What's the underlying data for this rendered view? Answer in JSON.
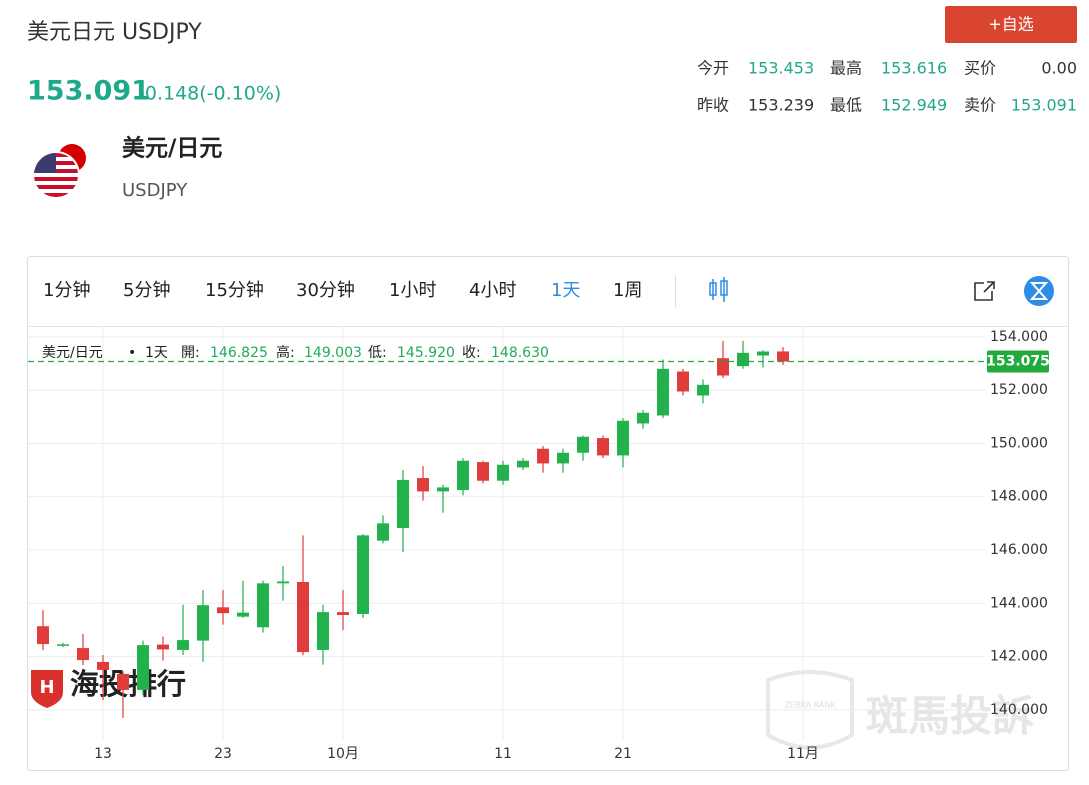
{
  "header": {
    "title": "美元日元 USDJPY",
    "price": "153.091",
    "change": "-0.148(-0.10%)",
    "button": "+自选",
    "stats": [
      [
        {
          "label": "今开",
          "value": "153.453"
        },
        {
          "label": "最高",
          "value": "153.616"
        },
        {
          "label": "买价",
          "value": "0.00"
        }
      ],
      [
        {
          "label": "昨收",
          "value": "153.239"
        },
        {
          "label": "最低",
          "value": "152.949"
        },
        {
          "label": "卖价",
          "value": "153.091"
        }
      ]
    ]
  },
  "instrument": {
    "name": "美元/日元",
    "code": "USDJPY"
  },
  "toolbar": {
    "intervals": [
      "1分钟",
      "5分钟",
      "15分钟",
      "30分钟",
      "1小时",
      "4小时",
      "1天",
      "1周"
    ],
    "selected": 6
  },
  "watermarks": {
    "logo": "海投排行",
    "zebra": "斑馬投訴",
    "zebra_small": "ZEBRA RANK"
  },
  "chart_data": {
    "type": "candlestick",
    "categories": [
      null,
      null,
      null,
      "13",
      null,
      null,
      null,
      null,
      null,
      "23",
      null,
      null,
      null,
      null,
      null,
      "10月",
      null,
      null,
      null,
      null,
      null,
      null,
      null,
      "11",
      null,
      null,
      null,
      null,
      null,
      "21",
      null,
      null,
      null,
      null,
      null,
      null,
      null,
      null,
      "11月"
    ],
    "open": [
      143.14,
      142.42,
      142.32,
      141.8,
      141.35,
      140.75,
      142.45,
      142.25,
      142.6,
      143.85,
      143.5,
      143.1,
      144.75,
      144.8,
      142.25,
      143.67,
      143.6,
      146.35,
      146.825,
      148.7,
      148.2,
      148.25,
      149.3,
      148.6,
      149.1,
      149.8,
      149.25,
      149.65,
      150.2,
      149.55,
      150.75,
      151.05,
      152.7,
      151.8,
      153.2,
      152.9,
      153.3,
      153.453,
      null
    ],
    "high": [
      143.74,
      142.52,
      142.85,
      142.06,
      141.45,
      142.6,
      142.75,
      143.95,
      144.5,
      144.5,
      144.85,
      144.85,
      145.4,
      146.55,
      143.95,
      144.5,
      146.6,
      147.3,
      149.003,
      149.15,
      148.45,
      149.45,
      149.35,
      149.35,
      149.45,
      149.9,
      149.8,
      150.3,
      150.3,
      150.95,
      151.25,
      153.15,
      152.8,
      152.4,
      153.85,
      153.85,
      153.5,
      153.616,
      null
    ],
    "low": [
      142.24,
      142.35,
      141.68,
      140.37,
      139.7,
      140.55,
      141.85,
      142.06,
      141.8,
      143.2,
      143.45,
      142.9,
      144.1,
      142.05,
      141.7,
      143.0,
      143.45,
      146.25,
      145.92,
      147.85,
      147.4,
      148.05,
      148.5,
      148.45,
      149.0,
      148.9,
      148.9,
      149.35,
      149.45,
      149.1,
      150.55,
      150.95,
      151.8,
      151.5,
      152.45,
      152.8,
      152.85,
      152.949,
      null
    ],
    "close": [
      142.47,
      142.46,
      141.87,
      141.5,
      140.75,
      142.43,
      142.27,
      142.62,
      143.93,
      143.63,
      143.65,
      144.75,
      144.82,
      142.17,
      143.67,
      143.56,
      146.55,
      147.0,
      148.63,
      148.2,
      148.35,
      149.35,
      148.6,
      149.2,
      149.35,
      149.25,
      149.65,
      150.25,
      149.55,
      150.85,
      151.15,
      152.8,
      151.95,
      152.2,
      152.55,
      153.4,
      153.45,
      153.075,
      null
    ],
    "up_color": "#22b14c",
    "down_color": "#e03c3c",
    "ylim": [
      138.87,
      154.37
    ],
    "yticks": [
      {
        "value": 140,
        "label": "140.000"
      },
      {
        "value": 142,
        "label": "142.000"
      },
      {
        "value": 144,
        "label": "144.000"
      },
      {
        "value": 146,
        "label": "146.000"
      },
      {
        "value": 148,
        "label": "148.000"
      },
      {
        "value": 150,
        "label": "150.000"
      },
      {
        "value": 152,
        "label": "152.000"
      },
      {
        "value": 154,
        "label": "154.000"
      }
    ],
    "grid": true,
    "price_line": {
      "value": 153.075,
      "label": "153.075",
      "color": "#22ab3c"
    },
    "legend": {
      "name": "美元/日元",
      "dot": "•",
      "interval": "1天",
      "open_label": "開:",
      "open": "146.825",
      "high_label": "高:",
      "high": "149.003",
      "low_label": "低:",
      "low": "145.920",
      "close_label": "收:",
      "close": "148.630"
    }
  }
}
